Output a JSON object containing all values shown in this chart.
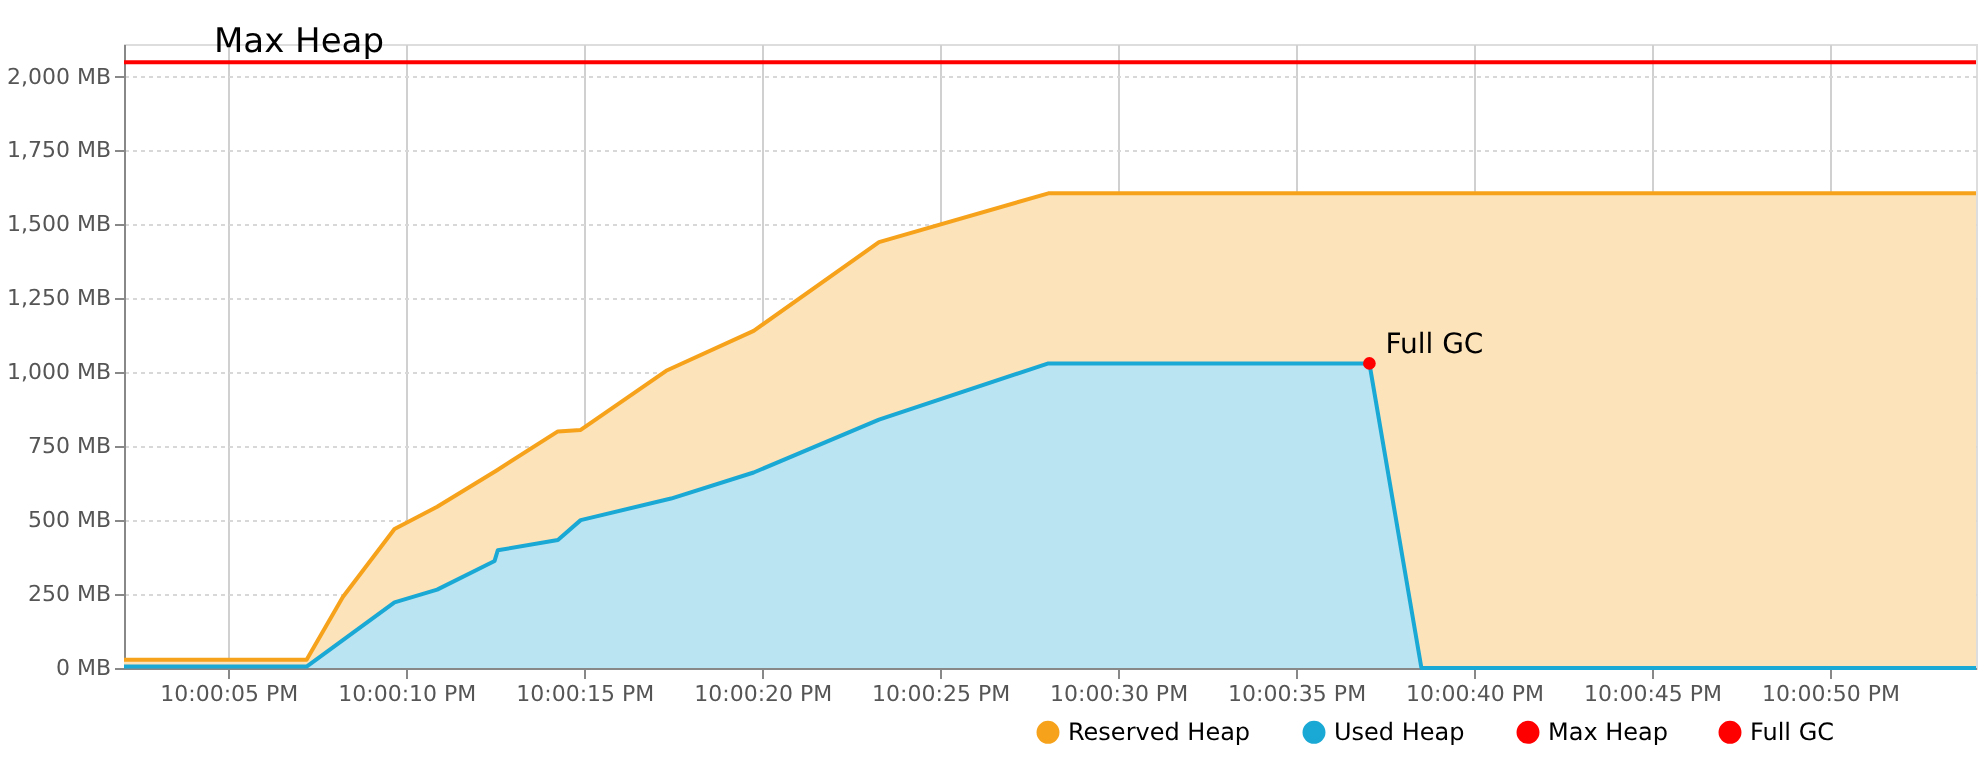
{
  "chart_data": {
    "type": "area",
    "series": [
      {
        "name": "Reserved Heap",
        "color": "#f7a21b",
        "x": [
          22.000575,
          22.002,
          22.002283,
          22.002686,
          22.003019,
          22.003483,
          22.003961,
          22.004139,
          22.004806,
          22.005489,
          22.006467,
          22.007789,
          22.015028
        ],
        "values": [
          28,
          28,
          240,
          470,
          545,
          668,
          800,
          805,
          1005,
          1140,
          1440,
          1605,
          1605
        ]
      },
      {
        "name": "Used Heap",
        "color": "#1aa8d4",
        "x": [
          22.000575,
          22.002,
          22.002686,
          22.003019,
          22.003467,
          22.003492,
          22.003961,
          22.004139,
          22.004844,
          22.005489,
          22.006467,
          22.007789,
          22.010294,
          22.0107,
          22.015028
        ],
        "values": [
          5,
          5,
          222,
          265,
          362,
          398,
          433,
          500,
          573,
          661,
          840,
          1030,
          1030,
          0,
          0
        ]
      },
      {
        "name": "Full GC",
        "type": "scatter",
        "color": "#ff0000",
        "marker": "circle",
        "x": [
          22.010294
        ],
        "values": [
          1030
        ]
      }
    ],
    "ref_lines": [
      {
        "axis": "y",
        "value": 2048,
        "label": "Max Heap",
        "color": "#ff0000",
        "line_style": "solid"
      }
    ],
    "annotations": [
      {
        "text": "Full GC",
        "x": 22.010294,
        "y": 1030
      }
    ],
    "xlim": [
      22.000575,
      22.015028
    ],
    "xticks": [
      {
        "value": 22.001389,
        "label": "10:00:05 PM"
      },
      {
        "value": 22.002778,
        "label": "10:00:10 PM"
      },
      {
        "value": 22.004167,
        "label": "10:00:15 PM"
      },
      {
        "value": 22.005556,
        "label": "10:00:20 PM"
      },
      {
        "value": 22.006944,
        "label": "10:00:25 PM"
      },
      {
        "value": 22.008333,
        "label": "10:00:30 PM"
      },
      {
        "value": 22.009722,
        "label": "10:00:35 PM"
      },
      {
        "value": 22.011111,
        "label": "10:00:40 PM"
      },
      {
        "value": 22.0125,
        "label": "10:00:45 PM"
      },
      {
        "value": 22.013889,
        "label": "10:00:50 PM"
      }
    ],
    "ylim": [
      0,
      2110
    ],
    "yticks": [
      {
        "value": 0,
        "label": "0 MB"
      },
      {
        "value": 250,
        "label": "250 MB"
      },
      {
        "value": 500,
        "label": "500 MB"
      },
      {
        "value": 750,
        "label": "750 MB"
      },
      {
        "value": 1000,
        "label": "1,000 MB"
      },
      {
        "value": 1250,
        "label": "1,250 MB"
      },
      {
        "value": 1500,
        "label": "1,500 MB"
      },
      {
        "value": 1750,
        "label": "1,750 MB"
      },
      {
        "value": 2000,
        "label": "2,000 MB"
      }
    ],
    "grid": true,
    "legend": "bottom right"
  }
}
